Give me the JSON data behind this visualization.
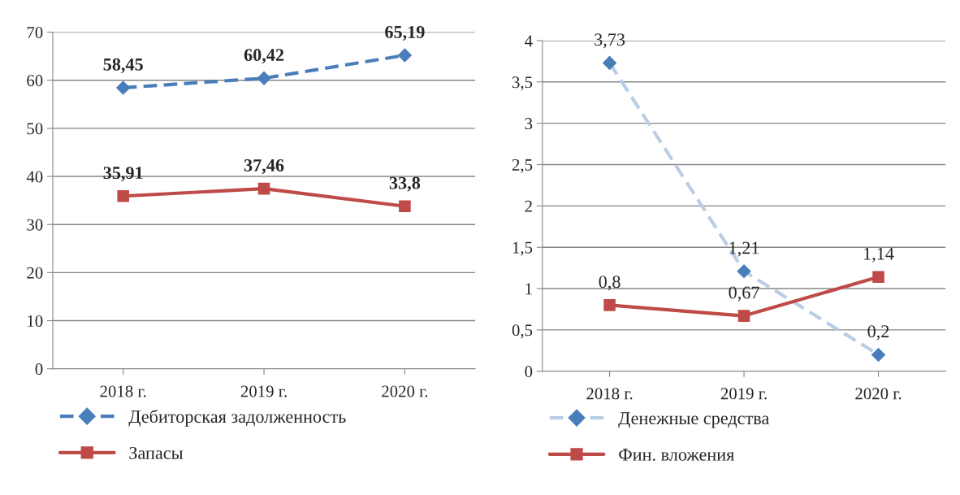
{
  "chart_data": [
    {
      "type": "line",
      "categories": [
        "2018 г.",
        "2019 г.",
        "2020 г."
      ],
      "ylim": [
        0,
        70
      ],
      "yticks": [
        0,
        10,
        20,
        30,
        40,
        50,
        60,
        70
      ],
      "grid": "y",
      "legend": "bottom",
      "data_labels": true,
      "series": [
        {
          "name": "Дебиторская задолженность",
          "color": "#4a7ebb",
          "values": [
            58.45,
            60.42,
            65.19
          ],
          "value_labels": [
            "58,45",
            "60,42",
            "65,19"
          ],
          "marker": "diamond",
          "line_style": "dashed"
        },
        {
          "name": "Запасы",
          "color": "#be4b48",
          "values": [
            35.91,
            37.46,
            33.8
          ],
          "value_labels": [
            "35,91",
            "37,46",
            "33,8"
          ],
          "marker": "square",
          "line_style": "solid"
        }
      ]
    },
    {
      "type": "line",
      "categories": [
        "2018 г.",
        "2019 г.",
        "2020 г."
      ],
      "ylim": [
        0,
        4
      ],
      "yticks": [
        {
          "value": 0,
          "label": "0"
        },
        {
          "value": 0.5,
          "label": "0,5"
        },
        {
          "value": 1,
          "label": "1"
        },
        {
          "value": 1.5,
          "label": "1,5"
        },
        {
          "value": 2,
          "label": "2"
        },
        {
          "value": 2.5,
          "label": "2,5"
        },
        {
          "value": 3,
          "label": "3"
        },
        {
          "value": 3.5,
          "label": "3,5"
        },
        {
          "value": 4,
          "label": "4"
        }
      ],
      "grid": "y",
      "legend": "bottom",
      "data_labels": true,
      "series": [
        {
          "name": "Денежные средства",
          "color": "#b9cde5",
          "colors": [
            "#4a7ebb",
            "#4a7ebb",
            "#4a7ebb"
          ],
          "values": [
            3.73,
            1.21,
            0.2
          ],
          "value_labels": [
            "3,73",
            "1,21",
            "0,2"
          ],
          "marker": "diamond",
          "line_style": "dashed"
        },
        {
          "name": "Фин. вложения",
          "color": "#be4b48",
          "values": [
            0.8,
            0.67,
            1.14
          ],
          "value_labels": [
            "0,8",
            "0,67",
            "1,14"
          ],
          "marker": "square",
          "line_style": "solid"
        }
      ]
    }
  ]
}
